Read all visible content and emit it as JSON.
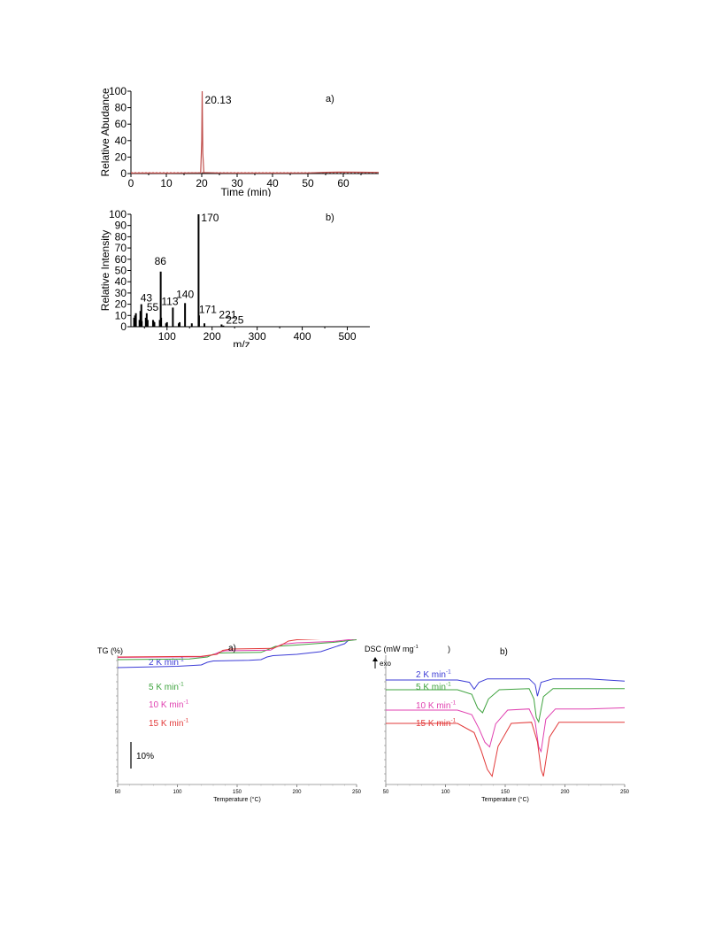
{
  "chart_data": [
    {
      "type": "line",
      "panel_label": "a)",
      "xlabel": "Time (min)",
      "ylabel": "Relative Abudance",
      "xlim": [
        0,
        70
      ],
      "ylim": [
        0,
        100
      ],
      "x_ticks": [
        "0",
        "10",
        "20",
        "30",
        "40",
        "50",
        "60"
      ],
      "y_ticks": [
        "0",
        "20",
        "40",
        "60",
        "80",
        "100"
      ],
      "color": "#c0504d",
      "peak_label": "20.13",
      "x": [
        0,
        5,
        10,
        15,
        19.7,
        20.0,
        20.13,
        20.3,
        20.6,
        25,
        30,
        40,
        50,
        55,
        60,
        65,
        70
      ],
      "y": [
        0.5,
        0.6,
        0.5,
        0.7,
        1.0,
        40,
        100,
        25,
        1.2,
        0.7,
        0.6,
        0.6,
        0.7,
        1.5,
        1.8,
        1.6,
        1.4
      ]
    },
    {
      "type": "bar",
      "panel_label": "b)",
      "xlabel": "m/z",
      "ylabel": "Relative Intensity",
      "xlim": [
        20,
        550
      ],
      "ylim": [
        0,
        100
      ],
      "x_ticks": [
        "100",
        "200",
        "300",
        "400",
        "500"
      ],
      "y_ticks": [
        "0",
        "10",
        "20",
        "30",
        "40",
        "50",
        "60",
        "70",
        "80",
        "90",
        "100"
      ],
      "labels": [
        "43",
        "55",
        "86",
        "113",
        "140",
        "170",
        "171",
        "221",
        "225"
      ],
      "x": [
        27,
        29,
        31,
        39,
        41,
        43,
        44,
        53,
        55,
        57,
        69,
        70,
        72,
        84,
        86,
        87,
        98,
        100,
        113,
        126,
        128,
        140,
        155,
        170,
        171,
        183,
        221,
        225
      ],
      "y": [
        8,
        10,
        12,
        6,
        14,
        20,
        5,
        8,
        12,
        6,
        6,
        5,
        4,
        6,
        49,
        8,
        3,
        4,
        17,
        3,
        4,
        21,
        3,
        100,
        10,
        3,
        2,
        1
      ]
    },
    {
      "type": "line",
      "panel_label": "a)",
      "ylabel": "TG (%)",
      "xlabel": "Temperature (°C)",
      "xlim": [
        50,
        250
      ],
      "x_ticks": [
        "50",
        "100",
        "150",
        "200",
        "250"
      ],
      "scale_bar_label": "10%",
      "series": [
        {
          "name": "2 K min",
          "superscript": "-1",
          "color": "#3b3bd6",
          "x": [
            50,
            100,
            120,
            125,
            130,
            160,
            170,
            175,
            180,
            200,
            220,
            240,
            250
          ],
          "y": [
            0,
            -1,
            -2,
            -4,
            -5,
            -5.5,
            -6,
            -8,
            -9,
            -10,
            -12,
            -18,
            -26
          ]
        },
        {
          "name": "5 K min",
          "superscript": "-1",
          "color": "#3fa33f",
          "x": [
            50,
            110,
            125,
            130,
            135,
            170,
            177,
            182,
            200,
            230,
            250
          ],
          "y": [
            -10,
            -10.5,
            -12,
            -14,
            -15,
            -15.5,
            -18,
            -20,
            -21,
            -23,
            -25
          ]
        },
        {
          "name": "10 K min",
          "superscript": "-1",
          "color": "#e040b0",
          "x": [
            50,
            120,
            130,
            135,
            140,
            178,
            183,
            188,
            200,
            230,
            250
          ],
          "y": [
            -19,
            -19.5,
            -21,
            -23,
            -24,
            -24.5,
            -27,
            -29,
            -30,
            -31,
            -33
          ]
        },
        {
          "name": "15 K min",
          "superscript": "-1",
          "color": "#e23a3a",
          "x": [
            50,
            120,
            133,
            138,
            145,
            180,
            187,
            193,
            200,
            230,
            250
          ],
          "y": [
            -24,
            -24.5,
            -26,
            -29,
            -30,
            -30.5,
            -33,
            -36,
            -37,
            -38,
            -40
          ]
        }
      ]
    },
    {
      "type": "line",
      "panel_label": "b)",
      "ylabel": "DSC (mW mg",
      "ylabel_superscript": "-1",
      "ylabel_suffix": ")",
      "exo_label": "exo",
      "xlabel": "Temperature (°C)",
      "xlim": [
        50,
        250
      ],
      "x_ticks": [
        "50",
        "100",
        "150",
        "200",
        "250"
      ],
      "series": [
        {
          "name": "2 K min",
          "superscript": "-1",
          "color": "#3b3bd6",
          "x": [
            50,
            110,
            120,
            124,
            128,
            135,
            170,
            175,
            177,
            180,
            190,
            220,
            250
          ],
          "y": [
            0,
            0,
            -1,
            -4,
            -1,
            0.5,
            0.5,
            -2,
            -7,
            -1,
            0.5,
            0.5,
            -0.5
          ]
        },
        {
          "name": "5 K min",
          "superscript": "-1",
          "color": "#3fa33f",
          "x": [
            50,
            110,
            122,
            127,
            131,
            136,
            145,
            170,
            174,
            176,
            178,
            182,
            190,
            220,
            250
          ],
          "y": [
            0,
            0,
            -2,
            -8,
            -10,
            -4,
            0,
            0.5,
            -4,
            -12,
            -14,
            -3,
            0.5,
            0.5,
            0.5
          ]
        },
        {
          "name": "10 K min",
          "superscript": "-1",
          "color": "#e040b0",
          "x": [
            50,
            110,
            122,
            128,
            133,
            137,
            142,
            152,
            170,
            175,
            178,
            180,
            184,
            192,
            220,
            250
          ],
          "y": [
            0,
            0,
            -2,
            -8,
            -14,
            -16,
            -6,
            0,
            0.5,
            -5,
            -16,
            -18,
            -4,
            0.5,
            0.5,
            1
          ]
        },
        {
          "name": "15 K min",
          "superscript": "-1",
          "color": "#e23a3a",
          "x": [
            50,
            110,
            124,
            130,
            135,
            139,
            144,
            155,
            172,
            177,
            180,
            182,
            187,
            195,
            220,
            250
          ],
          "y": [
            0,
            0,
            -4,
            -12,
            -20,
            -23,
            -10,
            0,
            0.5,
            -8,
            -20,
            -23,
            -6,
            0.5,
            0.5,
            0.5
          ]
        }
      ]
    }
  ]
}
